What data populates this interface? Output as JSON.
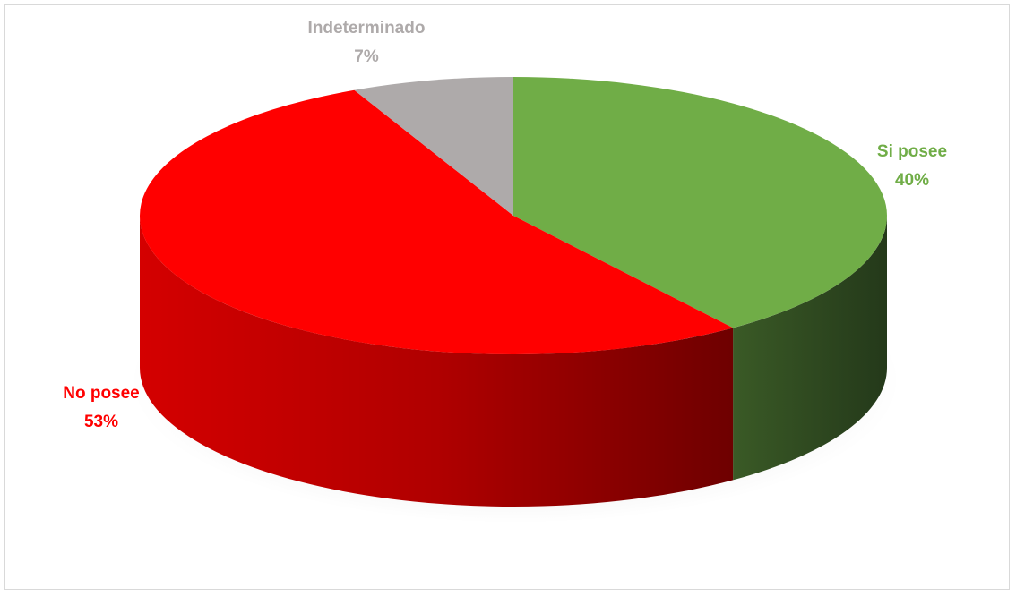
{
  "chart_data": {
    "type": "pie",
    "title": "",
    "style": "3d",
    "slices": [
      {
        "label": "Si posee",
        "value": 40,
        "value_label": "40%",
        "color": "#70ad47",
        "side_color": "#375623"
      },
      {
        "label": "No posee",
        "value": 53,
        "value_label": "53%",
        "color": "#ff0000",
        "side_color": "#b30000"
      },
      {
        "label": "Indeterminado",
        "value": 7,
        "value_label": "7%",
        "color": "#aeaaaa",
        "side_color": "#767171"
      }
    ],
    "legend": "none",
    "data_labels": "category-and-percent"
  }
}
